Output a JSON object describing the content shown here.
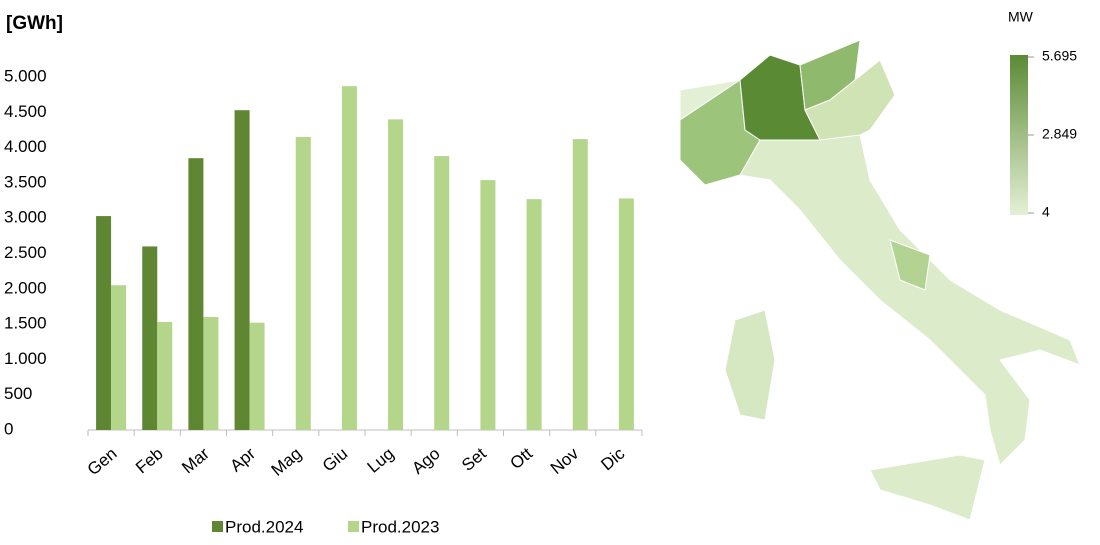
{
  "chart_data": {
    "type": "bar",
    "y_label": "[GWh]",
    "categories": [
      "Gen",
      "Feb",
      "Mar",
      "Apr",
      "Mag",
      "Giu",
      "Lug",
      "Ago",
      "Set",
      "Ott",
      "Nov",
      "Dic"
    ],
    "series": [
      {
        "name": "Prod.2024",
        "color": "#5f8632",
        "values": [
          3030,
          2600,
          3850,
          4530,
          null,
          null,
          null,
          null,
          null,
          null,
          null,
          null
        ]
      },
      {
        "name": "Prod.2023",
        "color": "#b4d68a",
        "values": [
          2050,
          1530,
          1600,
          1520,
          4150,
          4870,
          4400,
          3880,
          3540,
          3270,
          4120,
          3280
        ]
      }
    ],
    "ylim": [
      0,
      5000
    ],
    "yticks": [
      0,
      500,
      {
        "value": 1000,
        "label": "1.000"
      },
      {
        "value": 1500,
        "label": "1.500"
      },
      {
        "value": 2000,
        "label": "2.000"
      },
      {
        "value": 2500,
        "label": "2.500"
      },
      {
        "value": 3000,
        "label": "3.000"
      },
      {
        "value": 3500,
        "label": "3.500"
      },
      {
        "value": 4000,
        "label": "4.000"
      },
      {
        "value": 4500,
        "label": "4.500"
      },
      {
        "value": 5000,
        "label": "5.000"
      }
    ],
    "grid": false,
    "legend": "bottom"
  },
  "map": {
    "legend_title": "MW",
    "scale": [
      {
        "value": 5695,
        "label": "5.695"
      },
      {
        "value": 2849,
        "label": "2.849"
      },
      4
    ],
    "colors": [
      "#5b8a34",
      "#e4f0d6"
    ]
  }
}
